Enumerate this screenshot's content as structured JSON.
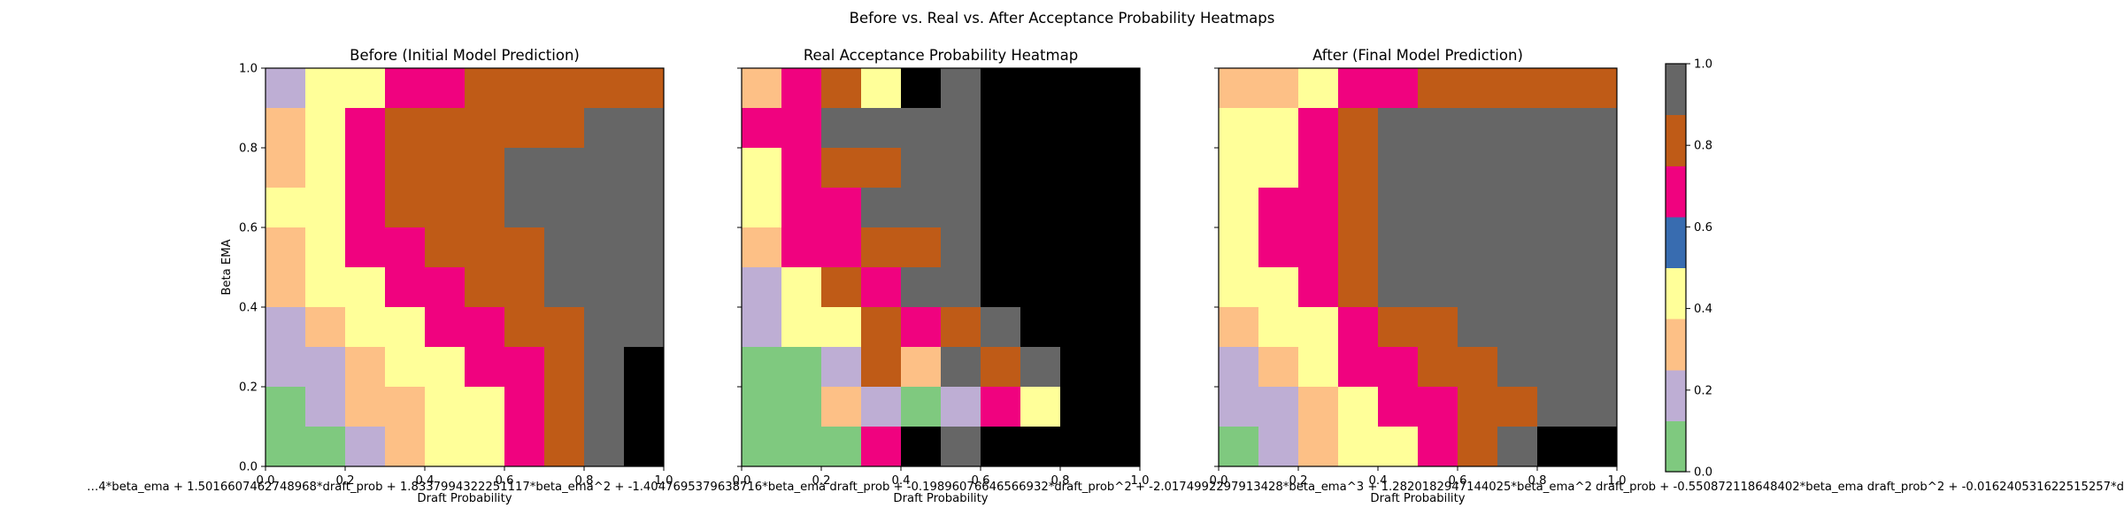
{
  "figure": {
    "title": "Before vs. Real vs. After Acceptance Probability Heatmaps",
    "formula": "…4*beta_ema + 1.5016607462748968*draft_prob + 1.8337994322251117*beta_ema^2 + -1.4047695379638716*beta_ema draft_prob + -0.19896076646566932*draft_prob^2 + -2.0174992297913428*beta_ema^3 + 1.2820182947144025*beta_ema^2 draft_prob + -0.550872118648402*beta_ema draft_prob^2 + -0.016240531622515257*d"
  },
  "chart_data": [
    {
      "type": "heatmap",
      "title": "Before (Initial Model Prediction)",
      "xlabel": "Draft Probability",
      "ylabel": "Beta EMA",
      "xlim": [
        0,
        1
      ],
      "ylim": [
        0,
        1
      ],
      "x_ticks": [
        "0.0",
        "0.2",
        "0.4",
        "0.6",
        "0.8",
        "1.0"
      ],
      "y_ticks": [
        "0.0",
        "0.2",
        "0.4",
        "0.6",
        "0.8",
        "1.0"
      ],
      "grid_size": 10,
      "values_top_to_bottom": [
        [
          1,
          3,
          3,
          5,
          5,
          6,
          6,
          6,
          6,
          6
        ],
        [
          2,
          3,
          5,
          6,
          6,
          6,
          6,
          6,
          7,
          7
        ],
        [
          2,
          3,
          5,
          6,
          6,
          6,
          7,
          7,
          7,
          7
        ],
        [
          3,
          3,
          5,
          6,
          6,
          6,
          7,
          7,
          7,
          7
        ],
        [
          2,
          3,
          5,
          5,
          6,
          6,
          6,
          7,
          7,
          7
        ],
        [
          2,
          3,
          3,
          5,
          5,
          6,
          6,
          7,
          7,
          7
        ],
        [
          1,
          2,
          3,
          3,
          5,
          5,
          6,
          6,
          7,
          7
        ],
        [
          1,
          1,
          2,
          3,
          3,
          5,
          5,
          6,
          7,
          8
        ],
        [
          0,
          1,
          2,
          2,
          3,
          3,
          5,
          6,
          7,
          8
        ],
        [
          0,
          0,
          1,
          2,
          3,
          3,
          5,
          6,
          7,
          8
        ]
      ]
    },
    {
      "type": "heatmap",
      "title": "Real Acceptance Probability Heatmap",
      "xlabel": "Draft Probability",
      "ylabel": "",
      "xlim": [
        0,
        1
      ],
      "ylim": [
        0,
        1
      ],
      "x_ticks": [
        "0.0",
        "0.2",
        "0.4",
        "0.6",
        "0.8",
        "1.0"
      ],
      "y_ticks": [],
      "grid_size": 10,
      "values_top_to_bottom": [
        [
          2,
          5,
          6,
          3,
          8,
          7,
          8,
          8,
          8,
          8
        ],
        [
          5,
          5,
          7,
          7,
          7,
          7,
          8,
          8,
          8,
          8
        ],
        [
          3,
          5,
          6,
          6,
          7,
          7,
          8,
          8,
          8,
          8
        ],
        [
          3,
          5,
          5,
          7,
          7,
          7,
          8,
          8,
          8,
          8
        ],
        [
          2,
          5,
          5,
          6,
          6,
          7,
          8,
          8,
          8,
          8
        ],
        [
          1,
          3,
          6,
          5,
          7,
          7,
          8,
          8,
          8,
          8
        ],
        [
          1,
          3,
          3,
          6,
          5,
          6,
          7,
          8,
          8,
          8
        ],
        [
          0,
          0,
          1,
          6,
          2,
          7,
          6,
          7,
          8,
          8
        ],
        [
          0,
          0,
          2,
          1,
          0,
          1,
          5,
          3,
          8,
          8
        ],
        [
          0,
          0,
          0,
          5,
          8,
          7,
          8,
          8,
          8,
          8
        ]
      ]
    },
    {
      "type": "heatmap",
      "title": "After (Final Model Prediction)",
      "xlabel": "Draft Probability",
      "ylabel": "",
      "xlim": [
        0,
        1
      ],
      "ylim": [
        0,
        1
      ],
      "x_ticks": [
        "0.0",
        "0.2",
        "0.4",
        "0.6",
        "0.8",
        "1.0"
      ],
      "y_ticks": [],
      "grid_size": 10,
      "values_top_to_bottom": [
        [
          2,
          2,
          3,
          5,
          5,
          6,
          6,
          6,
          6,
          6
        ],
        [
          3,
          3,
          5,
          6,
          7,
          7,
          7,
          7,
          7,
          7
        ],
        [
          3,
          3,
          5,
          6,
          7,
          7,
          7,
          7,
          7,
          7
        ],
        [
          3,
          5,
          5,
          6,
          7,
          7,
          7,
          7,
          7,
          7
        ],
        [
          3,
          5,
          5,
          6,
          7,
          7,
          7,
          7,
          7,
          7
        ],
        [
          3,
          3,
          5,
          6,
          7,
          7,
          7,
          7,
          7,
          7
        ],
        [
          2,
          3,
          3,
          5,
          6,
          6,
          7,
          7,
          7,
          7
        ],
        [
          1,
          2,
          3,
          5,
          5,
          6,
          6,
          7,
          7,
          7
        ],
        [
          1,
          1,
          2,
          3,
          5,
          5,
          6,
          6,
          7,
          7
        ],
        [
          0,
          1,
          2,
          3,
          3,
          5,
          6,
          7,
          8,
          8
        ]
      ]
    }
  ],
  "colorbar": {
    "colormap": "Accent",
    "colors": [
      "#7fc97f",
      "#beaed4",
      "#fdc086",
      "#ffff99",
      "#386cb0",
      "#f0027f",
      "#bf5b17",
      "#666666"
    ],
    "ticks": [
      "0.0",
      "0.2",
      "0.4",
      "0.6",
      "0.8",
      "1.0"
    ],
    "range": [
      0,
      1
    ]
  }
}
